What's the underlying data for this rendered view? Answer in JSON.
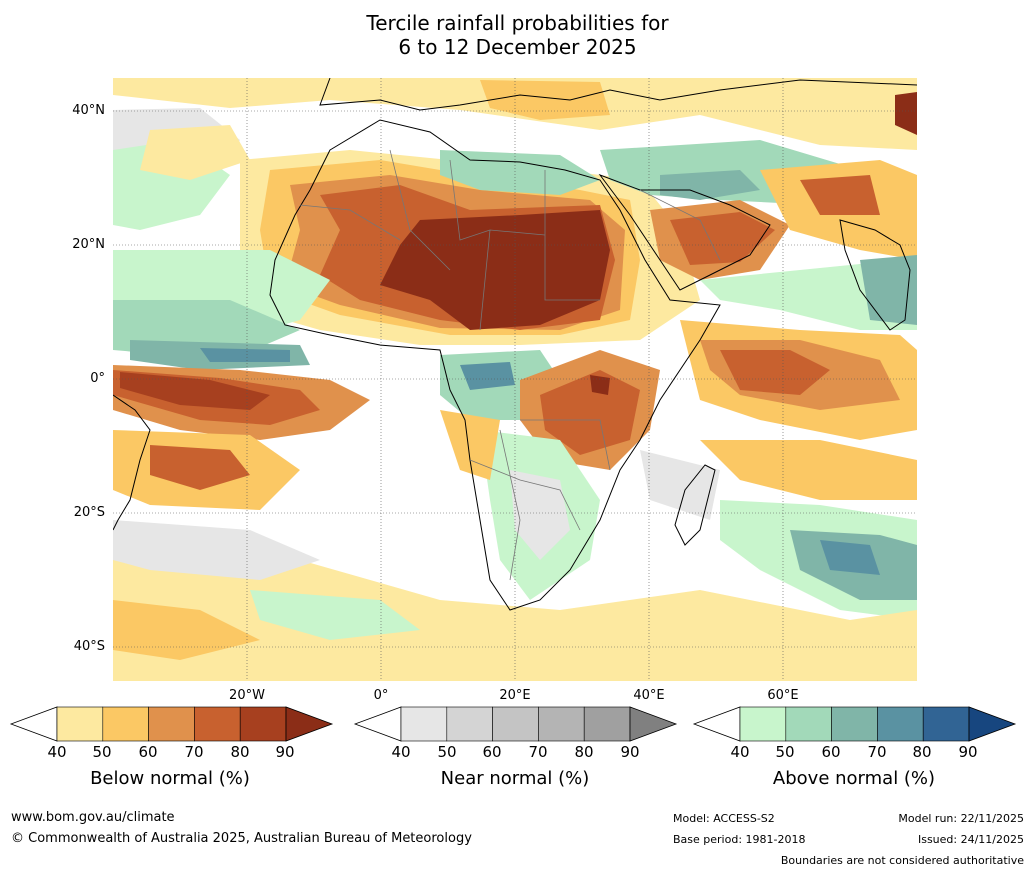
{
  "title": {
    "line1": "Tercile rainfall probabilities for",
    "line2": "6 to 12 December 2025"
  },
  "axes": {
    "lat_labels": [
      "40°N",
      "20°N",
      "0°",
      "20°S",
      "40°S"
    ],
    "lon_labels": [
      "20°W",
      "0°",
      "20°E",
      "40°E",
      "60°E"
    ]
  },
  "legend": {
    "ticks": [
      "40",
      "50",
      "60",
      "70",
      "80",
      "90"
    ],
    "below": {
      "label": "Below normal (%)",
      "colors": [
        "#ffffff",
        "#fde9a0",
        "#fbc864",
        "#e0914c",
        "#c8612f",
        "#a7401f",
        "#8b2d17"
      ]
    },
    "near": {
      "label": "Near normal (%)",
      "colors": [
        "#ffffff",
        "#e6e6e6",
        "#d4d4d4",
        "#c4c4c4",
        "#b4b4b4",
        "#a0a0a0",
        "#808080"
      ]
    },
    "above": {
      "label": "Above normal (%)",
      "colors": [
        "#ffffff",
        "#c8f5cc",
        "#a2d9b9",
        "#80b5a8",
        "#5a92a2",
        "#316494",
        "#17467f"
      ]
    }
  },
  "footer": {
    "website": "www.bom.gov.au/climate",
    "copyright": "© Commonwealth of Australia 2025, Australian Bureau of Meteorology",
    "model": "Model: ACCESS-S2",
    "base_period": "Base period: 1981-2018",
    "model_run": "Model run: 22/11/2025",
    "issued": "Issued: 24/11/2025",
    "disclaimer": "Boundaries are not considered authoritative"
  }
}
